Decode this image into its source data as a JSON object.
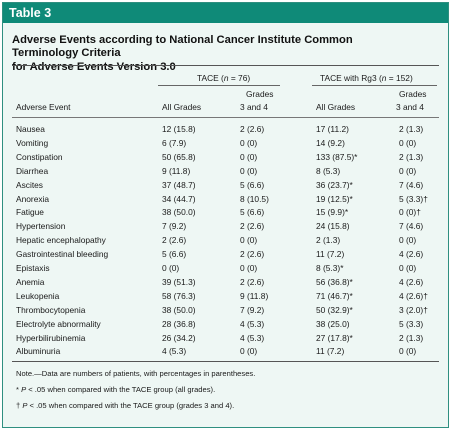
{
  "table_label": "Table 3",
  "caption_line1": "Adverse Events according to National Cancer Institute Common Terminology Criteria",
  "caption_line2": "for Adverse Events Version 3.0",
  "group1_prefix": "TACE (",
  "group1_n": "n",
  "group1_suffix": " = 76)",
  "group2_prefix": "TACE with Rg3 (",
  "group2_n": "n",
  "group2_suffix": " = 152)",
  "col_event": "Adverse Event",
  "col_all1": "All Grades",
  "col_g34_1a": "Grades",
  "col_g34_1b": "3 and 4",
  "col_all2": "All Grades",
  "col_g34_2a": "Grades",
  "col_g34_2b": "3 and 4",
  "rows": [
    [
      "Nausea",
      "12 (15.8)",
      "2 (2.6)",
      "17 (11.2)",
      "2 (1.3)"
    ],
    [
      "Vomiting",
      "6 (7.9)",
      "0 (0)",
      "14 (9.2)",
      "0 (0)"
    ],
    [
      "Constipation",
      "50 (65.8)",
      "0 (0)",
      "133 (87.5)*",
      "2 (1.3)"
    ],
    [
      "Diarrhea",
      "9 (11.8)",
      "0 (0)",
      "8 (5.3)",
      "0 (0)"
    ],
    [
      "Ascites",
      "37 (48.7)",
      "5 (6.6)",
      "36 (23.7)*",
      "7 (4.6)"
    ],
    [
      "Anorexia",
      "34 (44.7)",
      "8 (10.5)",
      "19 (12.5)*",
      "5 (3.3)†"
    ],
    [
      "Fatigue",
      "38 (50.0)",
      "5 (6.6)",
      "15 (9.9)*",
      "0 (0)†"
    ],
    [
      "Hypertension",
      "7 (9.2)",
      "2 (2.6)",
      "24 (15.8)",
      "7 (4.6)"
    ],
    [
      "Hepatic encephalopathy",
      "2 (2.6)",
      "0 (0)",
      "2 (1.3)",
      "0 (0)"
    ],
    [
      "Gastrointestinal bleeding",
      "5 (6.6)",
      "2 (2.6)",
      "11 (7.2)",
      "4 (2.6)"
    ],
    [
      "Epistaxis",
      "0 (0)",
      "0 (0)",
      "8 (5.3)*",
      "0 (0)"
    ],
    [
      "Anemia",
      "39 (51.3)",
      "2 (2.6)",
      "56 (36.8)*",
      "4 (2.6)"
    ],
    [
      "Leukopenia",
      "58 (76.3)",
      "9 (11.8)",
      "71 (46.7)*",
      "4 (2.6)†"
    ],
    [
      "Thrombocytopenia",
      "38 (50.0)",
      "7 (9.2)",
      "50 (32.9)*",
      "3 (2.0)†"
    ],
    [
      "Electrolyte abnormality",
      "28 (36.8)",
      "4 (5.3)",
      "38 (25.0)",
      "5 (3.3)"
    ],
    [
      "Hyperbilirubinemia",
      "26 (34.2)",
      "4 (5.3)",
      "27 (17.8)*",
      "2 (1.3)"
    ],
    [
      "Albuminuria",
      "4 (5.3)",
      "0 (0)",
      "11 (7.2)",
      "0 (0)"
    ]
  ],
  "note_line1": "Note.—Data are numbers of patients, with percentages in parentheses.",
  "note_line2_mark": "* ",
  "note_line2_p": "P",
  "note_line2_rest": " < .05 when compared with the TACE group (all grades).",
  "note_line3_mark": "† ",
  "note_line3_p": "P",
  "note_line3_rest": " < .05 when compared with the TACE group (grades 3 and 4)."
}
